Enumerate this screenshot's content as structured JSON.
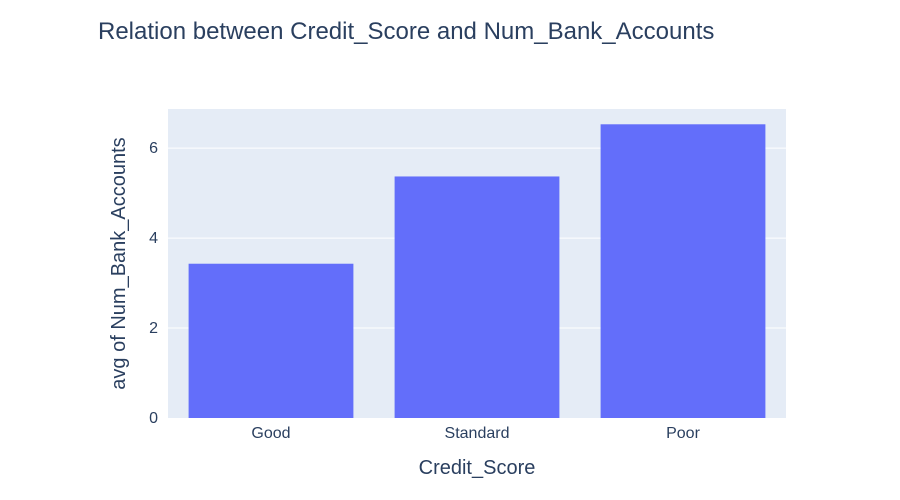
{
  "chart_data": {
    "type": "bar",
    "title": "Relation between Credit_Score and Num_Bank_Accounts",
    "xlabel": "Credit_Score",
    "ylabel": "avg of Num_Bank_Accounts",
    "categories": [
      "Good",
      "Standard",
      "Poor"
    ],
    "values": [
      3.43,
      5.37,
      6.53
    ],
    "ylim": [
      0,
      6.87
    ],
    "yticks": [
      0,
      2,
      4,
      6
    ],
    "grid": true,
    "legend": "none",
    "colors": {
      "bar": "#636efa",
      "plot_background": "#e5ecf6",
      "gridline": "#ffffff",
      "text": "#2a3f5f"
    }
  }
}
